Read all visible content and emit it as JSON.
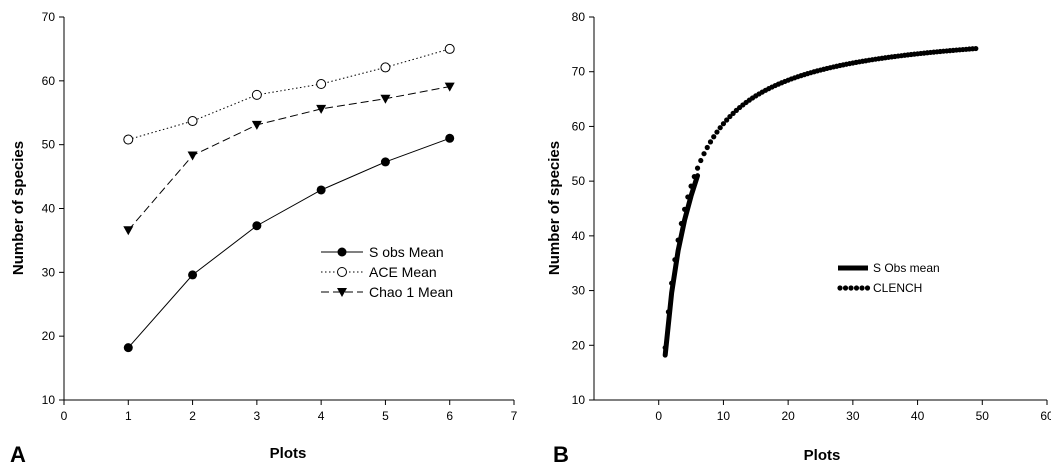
{
  "chart_data": [
    {
      "type": "line",
      "panel_label": "A",
      "xlabel": "Plots",
      "ylabel": "Number of species",
      "xlim": [
        0,
        7
      ],
      "ylim": [
        10,
        70
      ],
      "xticks": [
        0,
        1,
        2,
        3,
        4,
        5,
        6,
        7
      ],
      "yticks": [
        10,
        20,
        30,
        40,
        50,
        60,
        70
      ],
      "grid": false,
      "legend_position": "right",
      "x": [
        1,
        2,
        3,
        4,
        5,
        6
      ],
      "series": [
        {
          "name": "S obs Mean",
          "values": [
            18.2,
            29.6,
            37.3,
            42.9,
            47.3,
            51.0
          ],
          "marker": "filled-circle",
          "line": "solid",
          "color": "#000000"
        },
        {
          "name": "ACE Mean",
          "values": [
            50.8,
            53.7,
            57.8,
            59.5,
            62.1,
            65.0
          ],
          "marker": "open-circle",
          "line": "dotted",
          "color": "#000000"
        },
        {
          "name": "Chao 1 Mean",
          "values": [
            36.6,
            48.3,
            53.1,
            55.6,
            57.2,
            59.1
          ],
          "marker": "filled-triangle-down",
          "line": "dashed",
          "color": "#000000"
        }
      ]
    },
    {
      "type": "line",
      "panel_label": "B",
      "xlabel": "Plots",
      "ylabel": "Number of species",
      "xlim": [
        -10,
        60
      ],
      "ylim": [
        10,
        80
      ],
      "xticks": [
        0,
        10,
        20,
        30,
        40,
        50,
        60
      ],
      "xtick_labels": [
        "0",
        "10",
        "20",
        "30",
        "40",
        "50",
        "60"
      ],
      "yticks": [
        10,
        20,
        30,
        40,
        50,
        60,
        70,
        80
      ],
      "grid": false,
      "legend_position": "center-right",
      "series": [
        {
          "name": "S Obs mean",
          "line": "thick-solid",
          "color": "#000000",
          "x": [
            1,
            2,
            3,
            4,
            5,
            6
          ],
          "values": [
            18.2,
            29.6,
            37.3,
            42.9,
            47.3,
            51.0
          ]
        },
        {
          "name": "CLENCH",
          "line": "dotted",
          "color": "#000000",
          "model": "a*x/(1+b*x)",
          "a": 26.02,
          "b": 0.3301,
          "x_from": 1,
          "x_to": 49
        }
      ]
    }
  ]
}
